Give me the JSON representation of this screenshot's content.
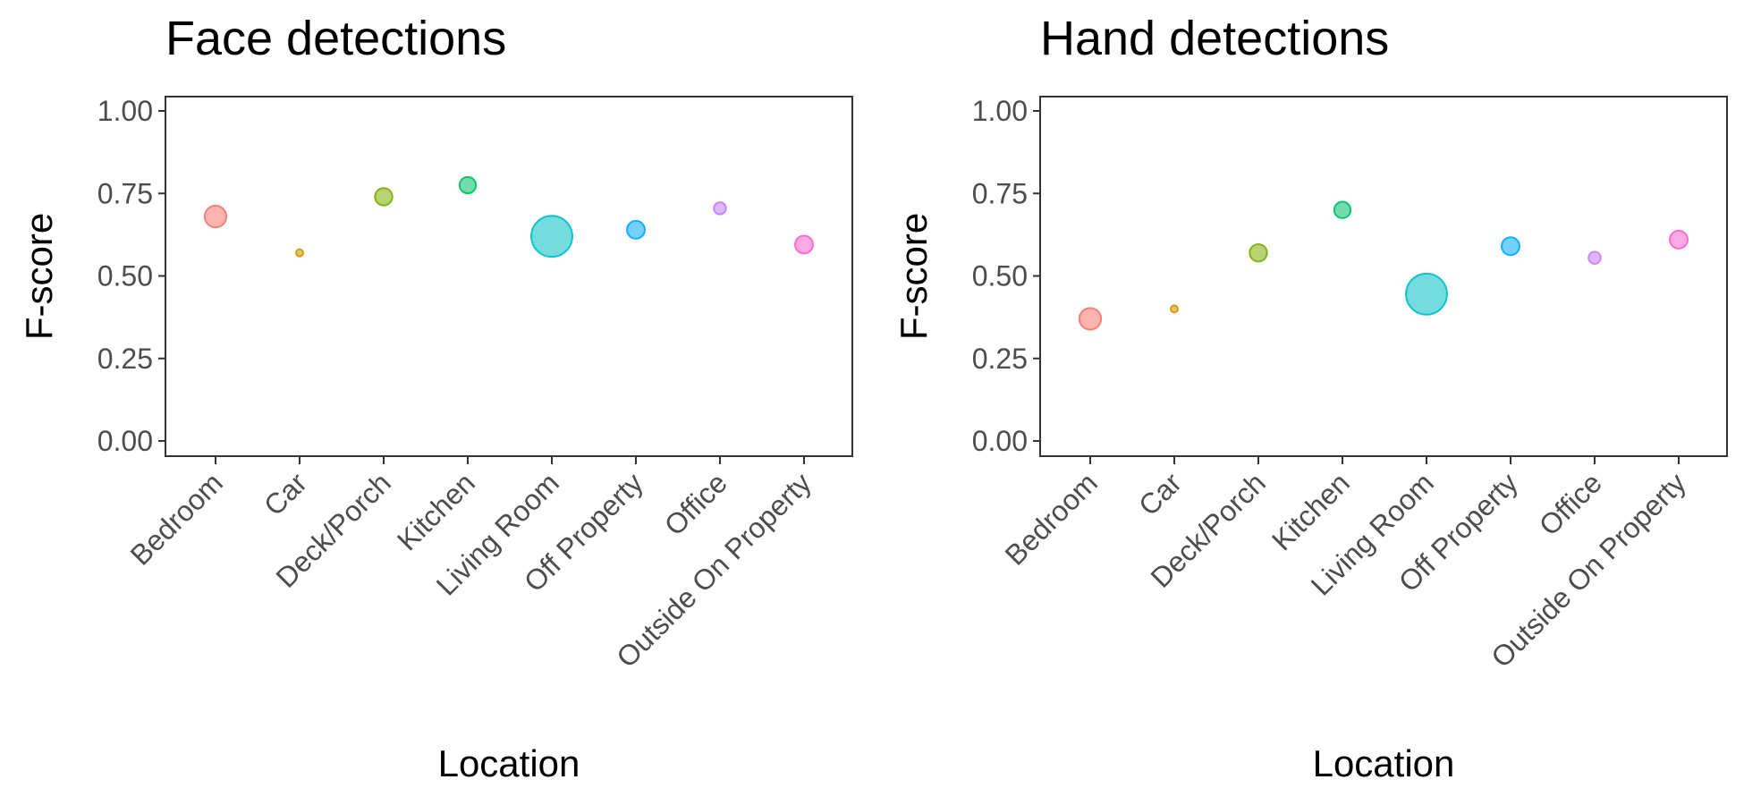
{
  "chart_data": [
    {
      "type": "scatter",
      "title": "Face detections",
      "xlabel": "Location",
      "ylabel": "F-score",
      "categories": [
        "Bedroom",
        "Car",
        "Deck/Porch",
        "Kitchen",
        "Living Room",
        "Off Property",
        "Office",
        "Outside On Property"
      ],
      "values": [
        0.68,
        0.57,
        0.74,
        0.775,
        0.62,
        0.64,
        0.705,
        0.595
      ],
      "relative_size": [
        0.45,
        0.12,
        0.36,
        0.34,
        0.85,
        0.37,
        0.25,
        0.37
      ],
      "colors": [
        "#F8766D",
        "#CD9600",
        "#7CAE00",
        "#00BE67",
        "#00BFC4",
        "#00A9FF",
        "#C77CFF",
        "#FF61CC"
      ],
      "ylim": [
        0,
        1
      ],
      "yticks": [
        0,
        0.25,
        0.5,
        0.75,
        1.0
      ],
      "ytick_labels": [
        "0.00",
        "0.25",
        "0.50",
        "0.75",
        "1.00"
      ],
      "grid": false,
      "legend": "none"
    },
    {
      "type": "scatter",
      "title": "Hand detections",
      "xlabel": "Location",
      "ylabel": "F-score",
      "categories": [
        "Bedroom",
        "Car",
        "Deck/Porch",
        "Kitchen",
        "Living Room",
        "Off Property",
        "Office",
        "Outside On Property"
      ],
      "values": [
        0.37,
        0.4,
        0.57,
        0.7,
        0.445,
        0.59,
        0.555,
        0.61
      ],
      "relative_size": [
        0.45,
        0.12,
        0.36,
        0.34,
        0.85,
        0.37,
        0.25,
        0.37
      ],
      "colors": [
        "#F8766D",
        "#CD9600",
        "#7CAE00",
        "#00BE67",
        "#00BFC4",
        "#00A9FF",
        "#C77CFF",
        "#FF61CC"
      ],
      "ylim": [
        0,
        1
      ],
      "yticks": [
        0,
        0.25,
        0.5,
        0.75,
        1.0
      ],
      "ytick_labels": [
        "0.00",
        "0.25",
        "0.50",
        "0.75",
        "1.00"
      ],
      "grid": false,
      "legend": "none"
    }
  ]
}
